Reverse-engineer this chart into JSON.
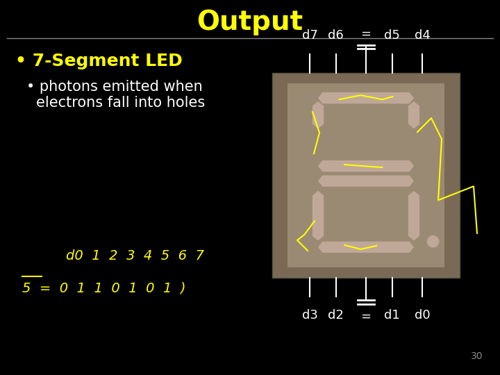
{
  "background_color": "#000000",
  "title": "Output",
  "title_color": "#ffff00",
  "title_fontsize": 28,
  "separator_color": "#888888",
  "bullet1_text": "7-Segment LED",
  "bullet1_color": "#ffff00",
  "bullet1_fontsize": 18,
  "bullet2_text": "photons emitted when\nelectrons fall into holes",
  "bullet2_color": "#ffffff",
  "bullet2_fontsize": 15,
  "pin_label_color": "#ffffff",
  "pin_label_fontsize": 13,
  "handwriting_color": "#ffff00",
  "page_number": "30",
  "page_number_color": "#888888",
  "page_number_fontsize": 10,
  "led_bg_color": "#7a6a55",
  "led_inner_color": "#9a8a74",
  "seg_color": "#c0a898",
  "seg_dark_color": "#8a7868",
  "ann_color": "#ffff00"
}
